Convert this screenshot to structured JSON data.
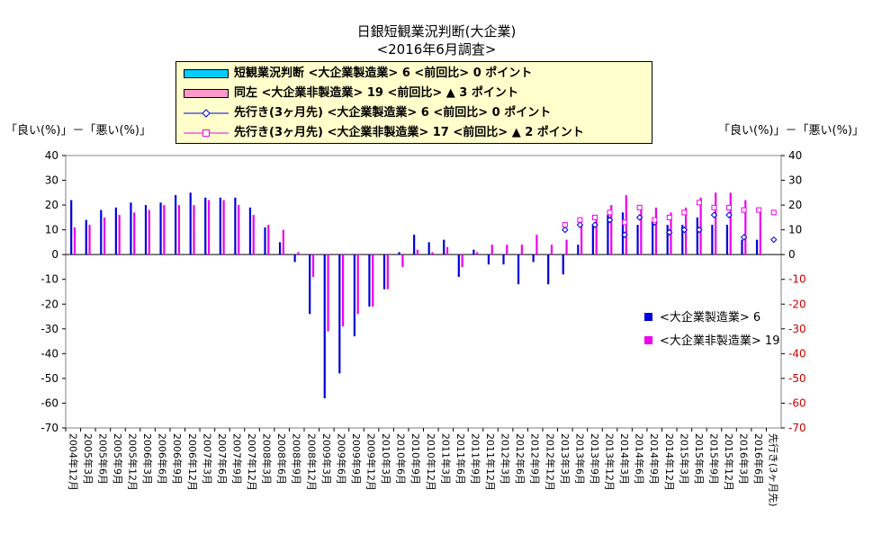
{
  "titles": {
    "main": "日銀短観業況判断(大企業)",
    "sub": "<2016年6月調査>"
  },
  "axis_labels": {
    "left": "「良い(%)」－「悪い(%)」",
    "right": "「良い(%)」－「悪い(%)」"
  },
  "legend": {
    "items": [
      {
        "label": "短観業況判断 <大企業製造業> 6 <前回比> 0 ポイント",
        "symbol": "cyan-bar"
      },
      {
        "label": "同左 <大企業非製造業> 19 <前回比> ▲ 3 ポイント",
        "symbol": "pink-bar"
      },
      {
        "label": "先行き(3ヶ月先) <大企業製造業> 6 <前回比> 0 ポイント",
        "symbol": "blue-diamond-line"
      },
      {
        "label": "先行き(3ヶ月先) <大企業非製造業> 17 <前回比> ▲ 2 ポイント",
        "symbol": "magenta-square-line"
      }
    ]
  },
  "side_legend": {
    "manufacturing": "<大企業製造業> 6",
    "nonmanufacturing": "<大企業非製造業> 19"
  },
  "colors": {
    "manufacturing": "#0000dd",
    "nonmanufacturing": "#ee00ee",
    "legend_cyan": "#00ccff",
    "legend_pink": "#ff99cc",
    "right_axis": "#cc0000",
    "legend_bg": "#ffffcc"
  },
  "chart_data": {
    "type": "bar",
    "categories": [
      "2004年12月",
      "2005年3月",
      "2005年6月",
      "2005年9月",
      "2005年12月",
      "2006年3月",
      "2006年6月",
      "2006年9月",
      "2006年12月",
      "2007年3月",
      "2007年6月",
      "2007年9月",
      "2007年12月",
      "2008年3月",
      "2008年6月",
      "2008年9月",
      "2008年12月",
      "2009年3月",
      "2009年6月",
      "2009年9月",
      "2009年12月",
      "2010年3月",
      "2010年6月",
      "2010年9月",
      "2010年12月",
      "2011年3月",
      "2011年6月",
      "2011年9月",
      "2011年12月",
      "2012年3月",
      "2012年6月",
      "2012年9月",
      "2012年12月",
      "2013年3月",
      "2013年6月",
      "2013年9月",
      "2013年12月",
      "2014年3月",
      "2014年6月",
      "2014年9月",
      "2014年12月",
      "2015年3月",
      "2015年6月",
      "2015年9月",
      "2015年12月",
      "2016年3月",
      "2016年6月",
      "先行き(3ヶ月先)"
    ],
    "series": [
      {
        "name": "<大企業製造業>",
        "kind": "bar",
        "values": [
          22,
          14,
          18,
          19,
          21,
          20,
          21,
          24,
          25,
          23,
          23,
          23,
          19,
          11,
          5,
          -3,
          -24,
          -58,
          -48,
          -33,
          -21,
          -14,
          1,
          8,
          5,
          6,
          -9,
          2,
          -4,
          -4,
          -12,
          -3,
          -12,
          -8,
          4,
          12,
          16,
          17,
          12,
          13,
          12,
          12,
          15,
          12,
          12,
          6,
          6,
          null
        ]
      },
      {
        "name": "<大企業非製造業>",
        "kind": "bar",
        "values": [
          11,
          12,
          15,
          16,
          17,
          18,
          20,
          20,
          20,
          22,
          22,
          20,
          16,
          12,
          10,
          1,
          -9,
          -31,
          -29,
          -24,
          -21,
          -14,
          -5,
          2,
          1,
          3,
          -5,
          1,
          4,
          4,
          4,
          8,
          4,
          6,
          12,
          14,
          20,
          24,
          19,
          19,
          17,
          19,
          23,
          25,
          25,
          22,
          19,
          null
        ]
      },
      {
        "name": "先行き(3ヶ月先) <大企業製造業>",
        "kind": "diamond",
        "values": [
          null,
          null,
          null,
          null,
          null,
          null,
          null,
          null,
          null,
          null,
          null,
          null,
          null,
          null,
          null,
          null,
          null,
          null,
          null,
          null,
          null,
          null,
          null,
          null,
          null,
          null,
          null,
          null,
          null,
          null,
          null,
          null,
          null,
          10,
          12,
          12,
          14,
          8,
          15,
          13,
          9,
          10,
          10,
          16,
          16,
          7,
          null,
          6
        ]
      },
      {
        "name": "先行き(3ヶ月先) <大企業非製造業>",
        "kind": "square",
        "values": [
          null,
          null,
          null,
          null,
          null,
          null,
          null,
          null,
          null,
          null,
          null,
          null,
          null,
          null,
          null,
          null,
          null,
          null,
          null,
          null,
          null,
          null,
          null,
          null,
          null,
          null,
          null,
          null,
          null,
          null,
          null,
          null,
          null,
          12,
          14,
          15,
          17,
          13,
          19,
          14,
          15,
          17,
          21,
          19,
          19,
          18,
          18,
          17
        ]
      }
    ],
    "ylim": [
      -70,
      40
    ],
    "yticks": [
      40,
      30,
      20,
      10,
      0,
      -10,
      -20,
      -30,
      -40,
      -50,
      -60,
      -70
    ],
    "yticks_right": [
      40,
      30,
      20,
      10,
      0,
      -10,
      -20,
      -30,
      -40,
      -50,
      -60,
      -70
    ],
    "grid": false,
    "legend_position": "top-center"
  }
}
